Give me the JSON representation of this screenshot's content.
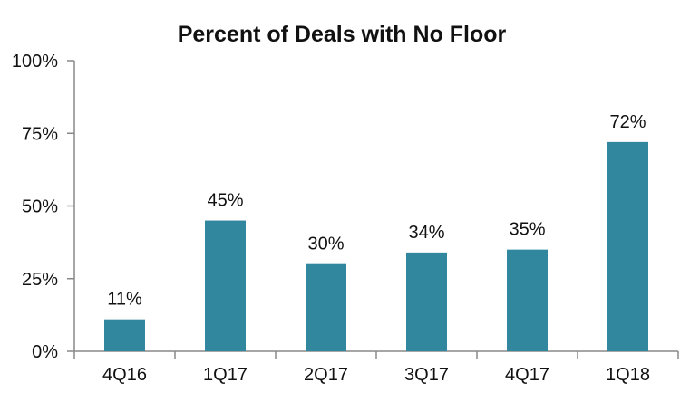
{
  "chart_data": {
    "type": "bar",
    "title": "Percent of Deals with No Floor",
    "xlabel": "",
    "ylabel": "",
    "categories": [
      "4Q16",
      "1Q17",
      "2Q17",
      "3Q17",
      "4Q17",
      "1Q18"
    ],
    "values": [
      11,
      45,
      30,
      34,
      35,
      72
    ],
    "value_labels": [
      "11%",
      "45%",
      "30%",
      "34%",
      "35%",
      "72%"
    ],
    "ylim": [
      0,
      100
    ],
    "yticks": [
      0,
      25,
      50,
      75,
      100
    ],
    "ytick_labels": [
      "0%",
      "25%",
      "50%",
      "75%",
      "100%"
    ],
    "grid": false,
    "legend": "none",
    "bar_color": "#31879E",
    "axis_color": "#888888"
  }
}
